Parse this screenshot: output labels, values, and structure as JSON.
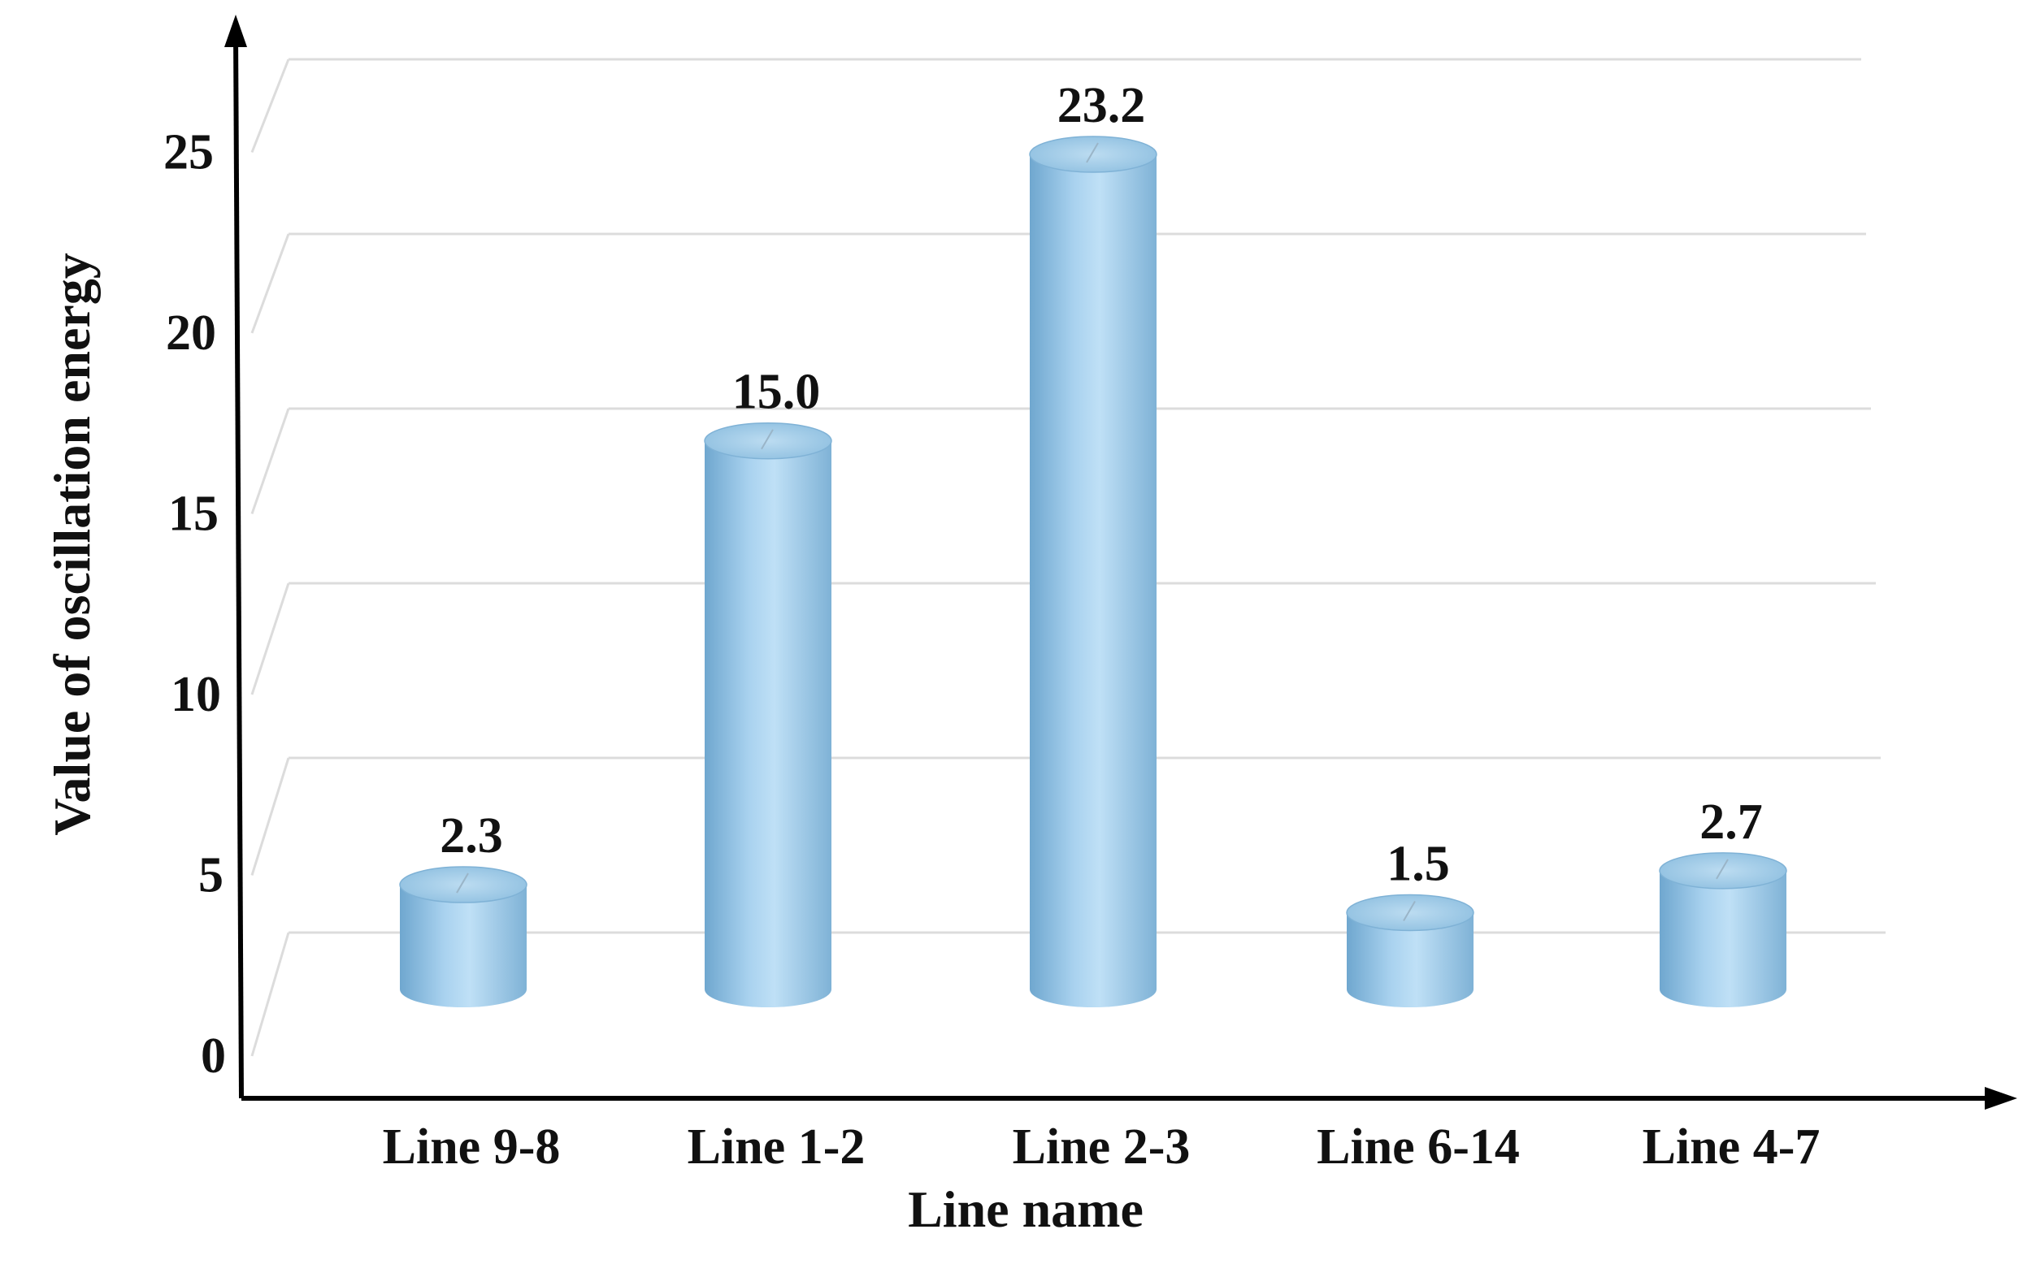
{
  "chart_data": {
    "type": "bar",
    "style": "3d-cylinder",
    "categories": [
      "Line 9-8",
      "Line 1-2",
      "Line 2-3",
      "Line 6-14",
      "Line 4-7"
    ],
    "values": [
      2.3,
      15.0,
      23.2,
      1.5,
      2.7
    ],
    "value_labels": [
      "2.3",
      "15.0",
      "23.2",
      "1.5",
      "2.7"
    ],
    "xlabel": "Line name",
    "ylabel": "Value of oscillation energy",
    "yticks": [
      "0",
      "5",
      "10",
      "15",
      "20",
      "25"
    ],
    "ylim": [
      0,
      27.5
    ],
    "grid": true,
    "colors": {
      "bar": "#a9d2ef",
      "bar_dark": "#6fa7cf",
      "bar_light": "#cfe8f9",
      "gridline": "#dcdcdc",
      "axis": "#000000"
    }
  }
}
